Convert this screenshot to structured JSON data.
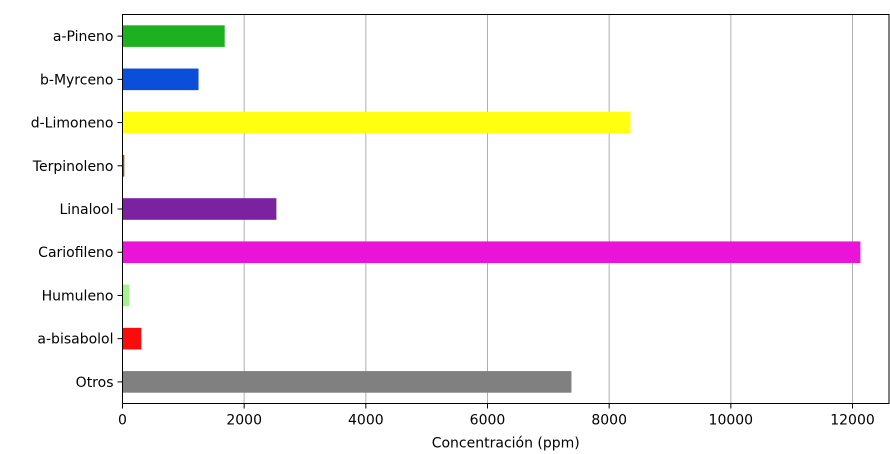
{
  "chart_data": {
    "type": "bar",
    "orientation": "horizontal",
    "categories": [
      "a-Pineno",
      "b-Myrceno",
      "d-Limoneno",
      "Terpinoleno",
      "Linalool",
      "Cariofileno",
      "Humuleno",
      "a-bisabolol",
      "Otros"
    ],
    "values": [
      1680,
      1250,
      8350,
      30,
      2530,
      12130,
      110,
      310,
      7380
    ],
    "colors": [
      "#1db122",
      "#0a4ed9",
      "#ffff10",
      "#9a5a0e",
      "#7b22a0",
      "#e914d8",
      "#a6f28a",
      "#fb0c0c",
      "#808080"
    ],
    "xlabel": "Concentración (ppm)",
    "ylabel": "",
    "title": "",
    "xlim": [
      0,
      12600
    ],
    "xticks": [
      0,
      2000,
      4000,
      6000,
      8000,
      10000,
      12000
    ],
    "xtick_labels": [
      "0",
      "2000",
      "4000",
      "6000",
      "8000",
      "10000",
      "12000"
    ],
    "grid": "vertical",
    "legend": "none"
  }
}
